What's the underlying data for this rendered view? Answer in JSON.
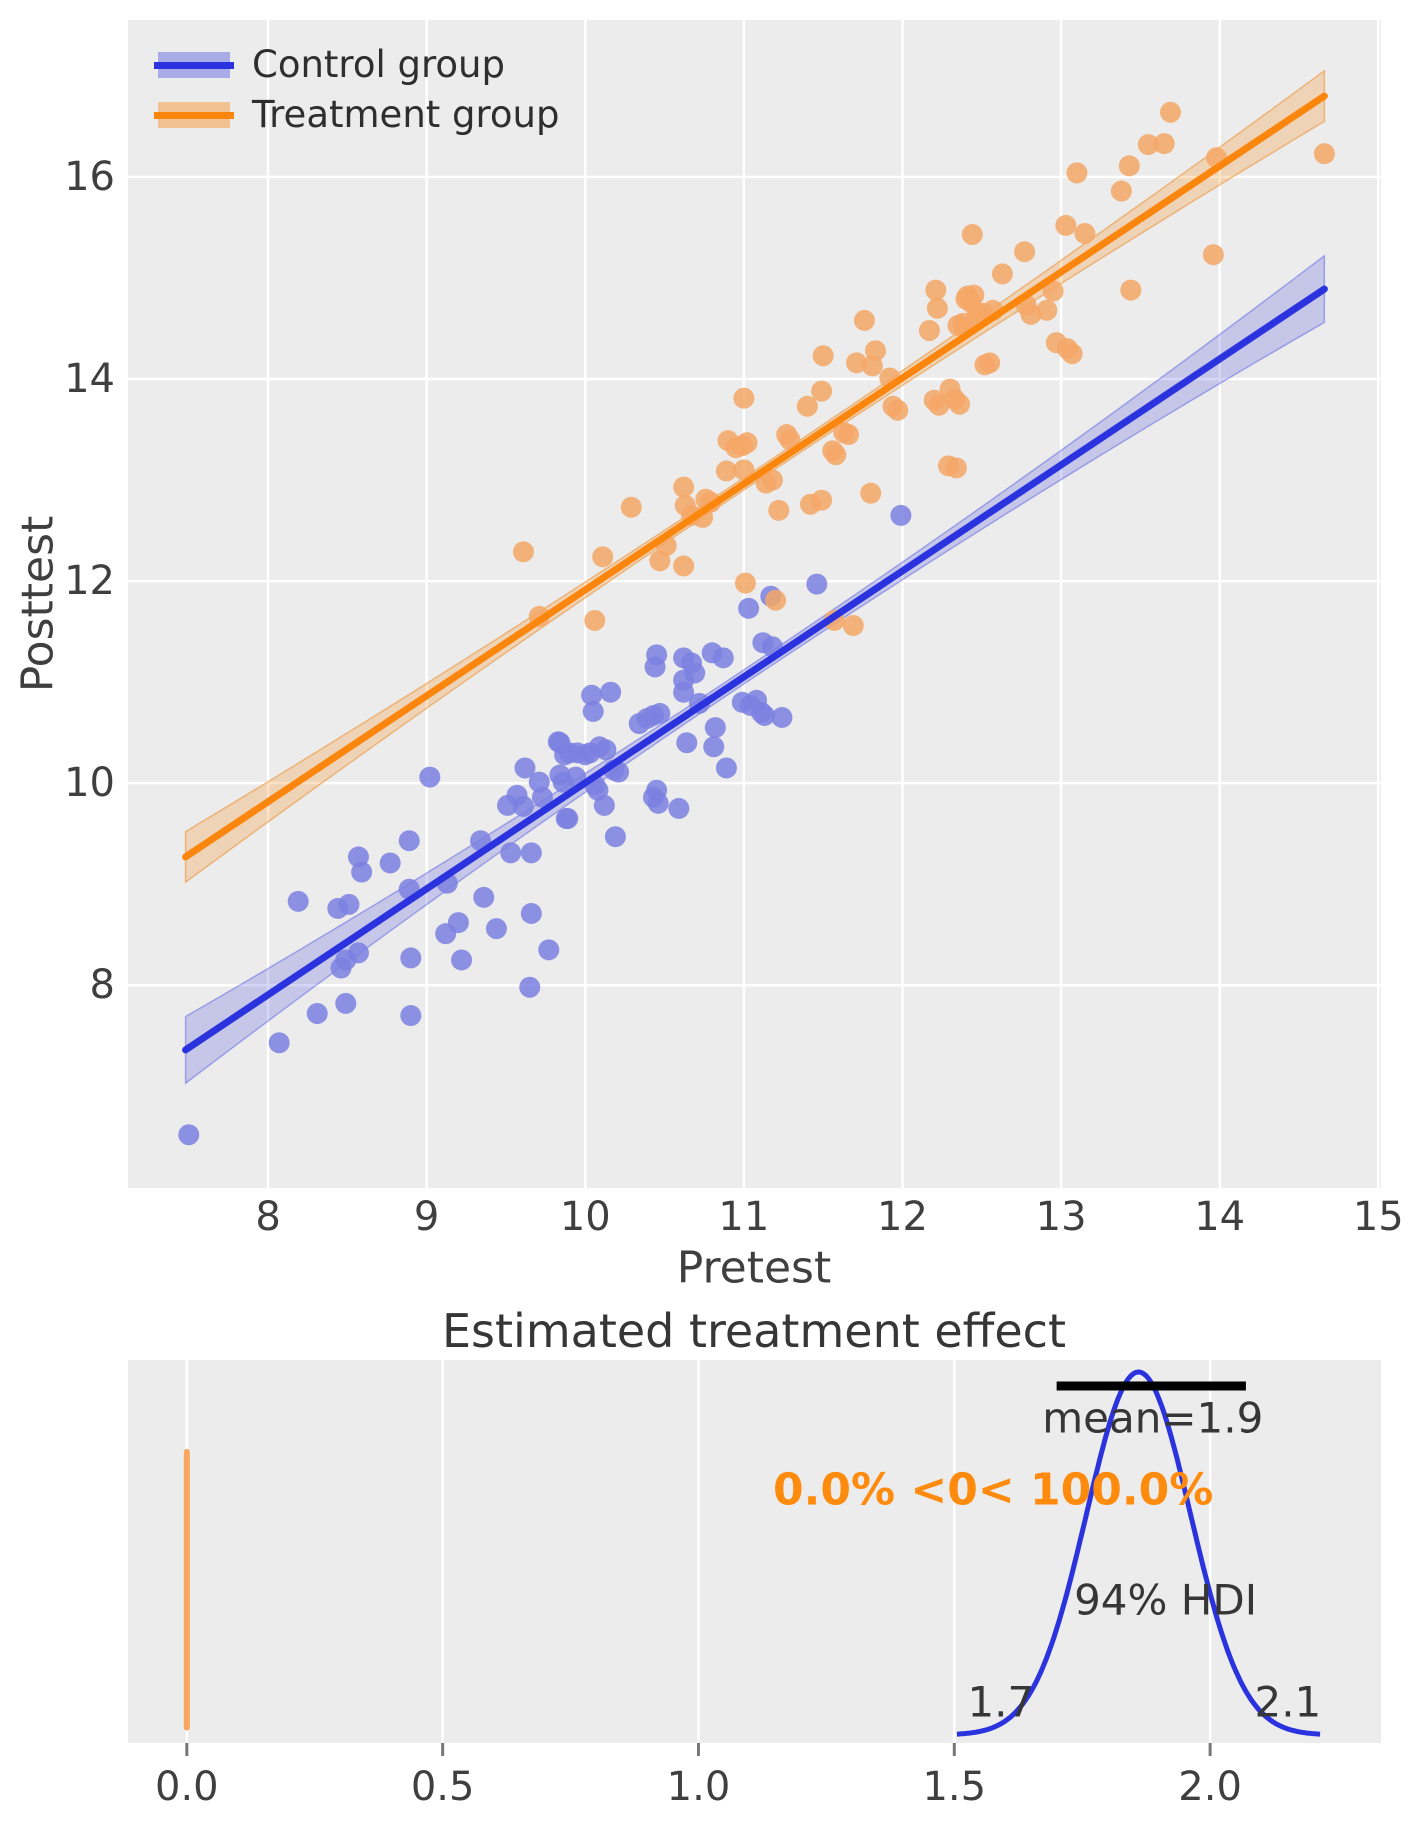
{
  "colors": {
    "panel_bg": "#ececec",
    "gridline": "#ffffff",
    "control_line": "#2b33de",
    "control_points": "#7b80e0",
    "control_band": "rgba(43,51,222,0.20)",
    "control_band_edge": "rgba(43,51,222,0.35)",
    "treatment_line": "#fb860e",
    "treatment_points": "#f4a766",
    "treatment_band": "rgba(251,134,14,0.24)",
    "treatment_band_edge": "rgba(235,150,60,0.6)",
    "kde_curve": "#2b33de",
    "ref_line": "#f5a763",
    "hdi_bar": "#000000",
    "tick_mark": "#777777",
    "text": "#3f3f3f",
    "prob_text": "#ff8b0e"
  },
  "legend": {
    "items": [
      {
        "label": "Control group"
      },
      {
        "label": "Treatment group"
      }
    ]
  },
  "chart_data": [
    {
      "type": "scatter",
      "xlabel": "Pretest",
      "ylabel": "Posttest",
      "xlim": [
        7.117,
        15.017
      ],
      "ylim": [
        5.993,
        17.553
      ],
      "grid": true,
      "legend_position": "upper left",
      "x_ticks": [
        8,
        9,
        10,
        11,
        12,
        13,
        14,
        15
      ],
      "x_tick_labels": [
        "8",
        "9",
        "10",
        "11",
        "12",
        "13",
        "14",
        "15"
      ],
      "y_ticks": [
        8,
        10,
        12,
        14,
        16
      ],
      "y_tick_labels": [
        "8",
        "10",
        "12",
        "14",
        "16"
      ],
      "series": [
        {
          "name": "Control group",
          "regression": {
            "x0": 7.48,
            "y0": 7.36,
            "x1": 14.66,
            "y1": 14.89,
            "band_halfwidth_mid": 0.07,
            "band_halfwidth_end": 0.33
          },
          "points": [
            [
              7.5,
              6.52
            ],
            [
              8.07,
              7.43
            ],
            [
              8.31,
              7.72
            ],
            [
              8.49,
              7.82
            ],
            [
              8.9,
              7.7
            ],
            [
              8.19,
              8.83
            ],
            [
              8.44,
              8.76
            ],
            [
              8.51,
              8.8
            ],
            [
              8.46,
              8.17
            ],
            [
              8.49,
              8.25
            ],
            [
              8.57,
              8.32
            ],
            [
              8.59,
              9.12
            ],
            [
              8.57,
              9.27
            ],
            [
              8.77,
              9.21
            ],
            [
              8.89,
              8.95
            ],
            [
              8.9,
              8.27
            ],
            [
              8.89,
              9.43
            ],
            [
              9.13,
              9.01
            ],
            [
              9.12,
              8.51
            ],
            [
              9.2,
              8.62
            ],
            [
              9.22,
              8.25
            ],
            [
              9.36,
              8.87
            ],
            [
              9.44,
              8.56
            ],
            [
              9.66,
              8.71
            ],
            [
              9.77,
              8.35
            ],
            [
              9.53,
              9.31
            ],
            [
              9.66,
              9.31
            ],
            [
              9.65,
              7.98
            ],
            [
              9.02,
              10.06
            ],
            [
              9.34,
              9.43
            ],
            [
              9.51,
              9.78
            ],
            [
              9.57,
              9.88
            ],
            [
              9.61,
              9.77
            ],
            [
              9.62,
              10.15
            ],
            [
              9.71,
              10.01
            ],
            [
              9.73,
              9.86
            ],
            [
              9.83,
              10.41
            ],
            [
              9.9,
              10.3
            ],
            [
              9.86,
              10.01
            ],
            [
              9.94,
              10.06
            ],
            [
              9.88,
              9.65
            ],
            [
              9.84,
              10.4
            ],
            [
              9.87,
              10.28
            ],
            [
              9.95,
              10.3
            ],
            [
              10.0,
              10.28
            ],
            [
              10.03,
              10.3
            ],
            [
              9.89,
              9.65
            ],
            [
              10.12,
              9.78
            ],
            [
              10.19,
              9.47
            ],
            [
              10.04,
              10.87
            ],
            [
              10.05,
              10.71
            ],
            [
              10.16,
              10.9
            ],
            [
              10.09,
              10.36
            ],
            [
              10.13,
              10.33
            ],
            [
              10.18,
              10.13
            ],
            [
              10.21,
              10.11
            ],
            [
              9.84,
              10.08
            ],
            [
              10.06,
              9.98
            ],
            [
              10.08,
              9.93
            ],
            [
              10.34,
              10.59
            ],
            [
              10.39,
              10.64
            ],
            [
              10.43,
              10.67
            ],
            [
              10.47,
              10.69
            ],
            [
              10.45,
              9.93
            ],
            [
              10.43,
              9.86
            ],
            [
              10.46,
              9.8
            ],
            [
              10.59,
              9.75
            ],
            [
              10.45,
              11.27
            ],
            [
              10.44,
              11.15
            ],
            [
              10.62,
              11.24
            ],
            [
              10.67,
              11.19
            ],
            [
              10.69,
              11.09
            ],
            [
              10.62,
              11.02
            ],
            [
              10.8,
              11.29
            ],
            [
              10.87,
              11.24
            ],
            [
              10.62,
              10.9
            ],
            [
              10.72,
              10.79
            ],
            [
              10.64,
              10.4
            ],
            [
              10.81,
              10.36
            ],
            [
              10.82,
              10.55
            ],
            [
              10.89,
              10.15
            ],
            [
              10.99,
              10.8
            ],
            [
              11.04,
              10.77
            ],
            [
              11.08,
              10.82
            ],
            [
              11.11,
              10.7
            ],
            [
              11.13,
              10.67
            ],
            [
              11.24,
              10.65
            ],
            [
              11.12,
              11.39
            ],
            [
              11.18,
              11.35
            ],
            [
              11.03,
              11.73
            ],
            [
              11.17,
              11.85
            ],
            [
              11.46,
              11.97
            ],
            [
              11.99,
              12.65
            ]
          ]
        },
        {
          "name": "Treatment group",
          "regression": {
            "x0": 7.48,
            "y0": 9.27,
            "x1": 14.66,
            "y1": 16.8,
            "band_halfwidth_mid": 0.06,
            "band_halfwidth_end": 0.25
          },
          "points": [
            [
              9.61,
              12.29
            ],
            [
              9.71,
              11.65
            ],
            [
              10.06,
              11.61
            ],
            [
              10.11,
              12.24
            ],
            [
              10.29,
              12.73
            ],
            [
              10.47,
              12.2
            ],
            [
              10.51,
              12.35
            ],
            [
              10.62,
              12.15
            ],
            [
              10.62,
              12.93
            ],
            [
              10.63,
              12.75
            ],
            [
              10.67,
              12.65
            ],
            [
              10.74,
              12.63
            ],
            [
              10.76,
              12.81
            ],
            [
              10.79,
              12.78
            ],
            [
              10.89,
              13.09
            ],
            [
              10.9,
              13.39
            ],
            [
              10.95,
              13.32
            ],
            [
              10.99,
              13.34
            ],
            [
              11.02,
              13.37
            ],
            [
              11.0,
              13.1
            ],
            [
              11.0,
              13.81
            ],
            [
              11.14,
              12.97
            ],
            [
              11.18,
              13.0
            ],
            [
              11.22,
              12.7
            ],
            [
              11.42,
              12.76
            ],
            [
              11.49,
              12.8
            ],
            [
              11.2,
              11.81
            ],
            [
              11.01,
              11.98
            ],
            [
              11.57,
              11.61
            ],
            [
              11.69,
              11.56
            ],
            [
              11.27,
              13.45
            ],
            [
              11.29,
              13.4
            ],
            [
              11.4,
              13.73
            ],
            [
              11.49,
              13.88
            ],
            [
              11.5,
              14.23
            ],
            [
              11.56,
              13.29
            ],
            [
              11.63,
              13.47
            ],
            [
              11.66,
              13.45
            ],
            [
              11.58,
              13.25
            ],
            [
              11.71,
              14.16
            ],
            [
              11.76,
              14.58
            ],
            [
              11.8,
              12.87
            ],
            [
              11.81,
              14.13
            ],
            [
              11.83,
              14.28
            ],
            [
              11.92,
              14.01
            ],
            [
              11.94,
              13.73
            ],
            [
              11.97,
              13.69
            ],
            [
              12.17,
              14.48
            ],
            [
              12.21,
              14.88
            ],
            [
              12.22,
              14.7
            ],
            [
              12.38,
              14.55
            ],
            [
              12.41,
              14.82
            ],
            [
              12.45,
              14.83
            ],
            [
              12.47,
              14.63
            ],
            [
              12.51,
              14.65
            ],
            [
              12.2,
              13.79
            ],
            [
              12.23,
              13.74
            ],
            [
              12.29,
              13.14
            ],
            [
              12.34,
              13.12
            ],
            [
              12.55,
              14.16
            ],
            [
              12.3,
              13.9
            ],
            [
              12.33,
              13.8
            ],
            [
              12.36,
              13.75
            ],
            [
              12.35,
              14.53
            ],
            [
              12.39,
              14.51
            ],
            [
              12.4,
              14.79
            ],
            [
              12.43,
              14.76
            ],
            [
              12.44,
              15.43
            ],
            [
              12.47,
              14.66
            ],
            [
              12.57,
              14.68
            ],
            [
              12.52,
              14.14
            ],
            [
              12.63,
              15.04
            ],
            [
              12.77,
              15.26
            ],
            [
              12.78,
              14.73
            ],
            [
              12.81,
              14.64
            ],
            [
              12.91,
              14.68
            ],
            [
              12.95,
              14.87
            ],
            [
              12.97,
              14.36
            ],
            [
              13.04,
              14.3
            ],
            [
              13.07,
              14.25
            ],
            [
              13.03,
              15.52
            ],
            [
              13.1,
              16.04
            ],
            [
              13.15,
              15.44
            ],
            [
              13.38,
              15.86
            ],
            [
              13.43,
              16.11
            ],
            [
              13.44,
              14.88
            ],
            [
              13.55,
              16.32
            ],
            [
              13.65,
              16.33
            ],
            [
              13.69,
              16.64
            ],
            [
              13.96,
              15.23
            ],
            [
              13.98,
              16.19
            ],
            [
              14.66,
              16.23
            ]
          ]
        }
      ]
    },
    {
      "type": "area",
      "title": "Estimated treatment effect",
      "xlim": [
        -0.115,
        2.334
      ],
      "x_ticks": [
        0.0,
        0.5,
        1.0,
        1.5,
        2.0
      ],
      "x_tick_labels": [
        "0.0",
        "0.5",
        "1.0",
        "1.5",
        "2.0"
      ],
      "kde": {
        "center": 1.86,
        "sd": 0.102,
        "x_start": 1.505,
        "x_end": 2.215,
        "peak_frac": 0.948
      },
      "ref_line": {
        "x": 0.0,
        "y_frac_bottom": 0.04,
        "y_frac_top": 0.76
      },
      "hdi": {
        "lo": 1.7,
        "hi": 2.1,
        "bar_lo": 1.7,
        "bar_hi": 2.07,
        "bar_y_frac": 0.932,
        "label": "94% HDI",
        "lo_label": "1.7",
        "hi_label": "2.1",
        "label_x": 1.913,
        "label_y_frac": 0.627,
        "lo_label_x": 1.591,
        "hi_label_x": 2.152,
        "lohi_y_frac": 0.893
      },
      "annotations": {
        "mean_label": "mean=1.9",
        "mean_x": 1.888,
        "mean_y_frac": 0.151,
        "prob_label": "0.0% <0< 100.0%",
        "prob_x": 1.576,
        "prob_y_frac": 0.339
      }
    }
  ]
}
